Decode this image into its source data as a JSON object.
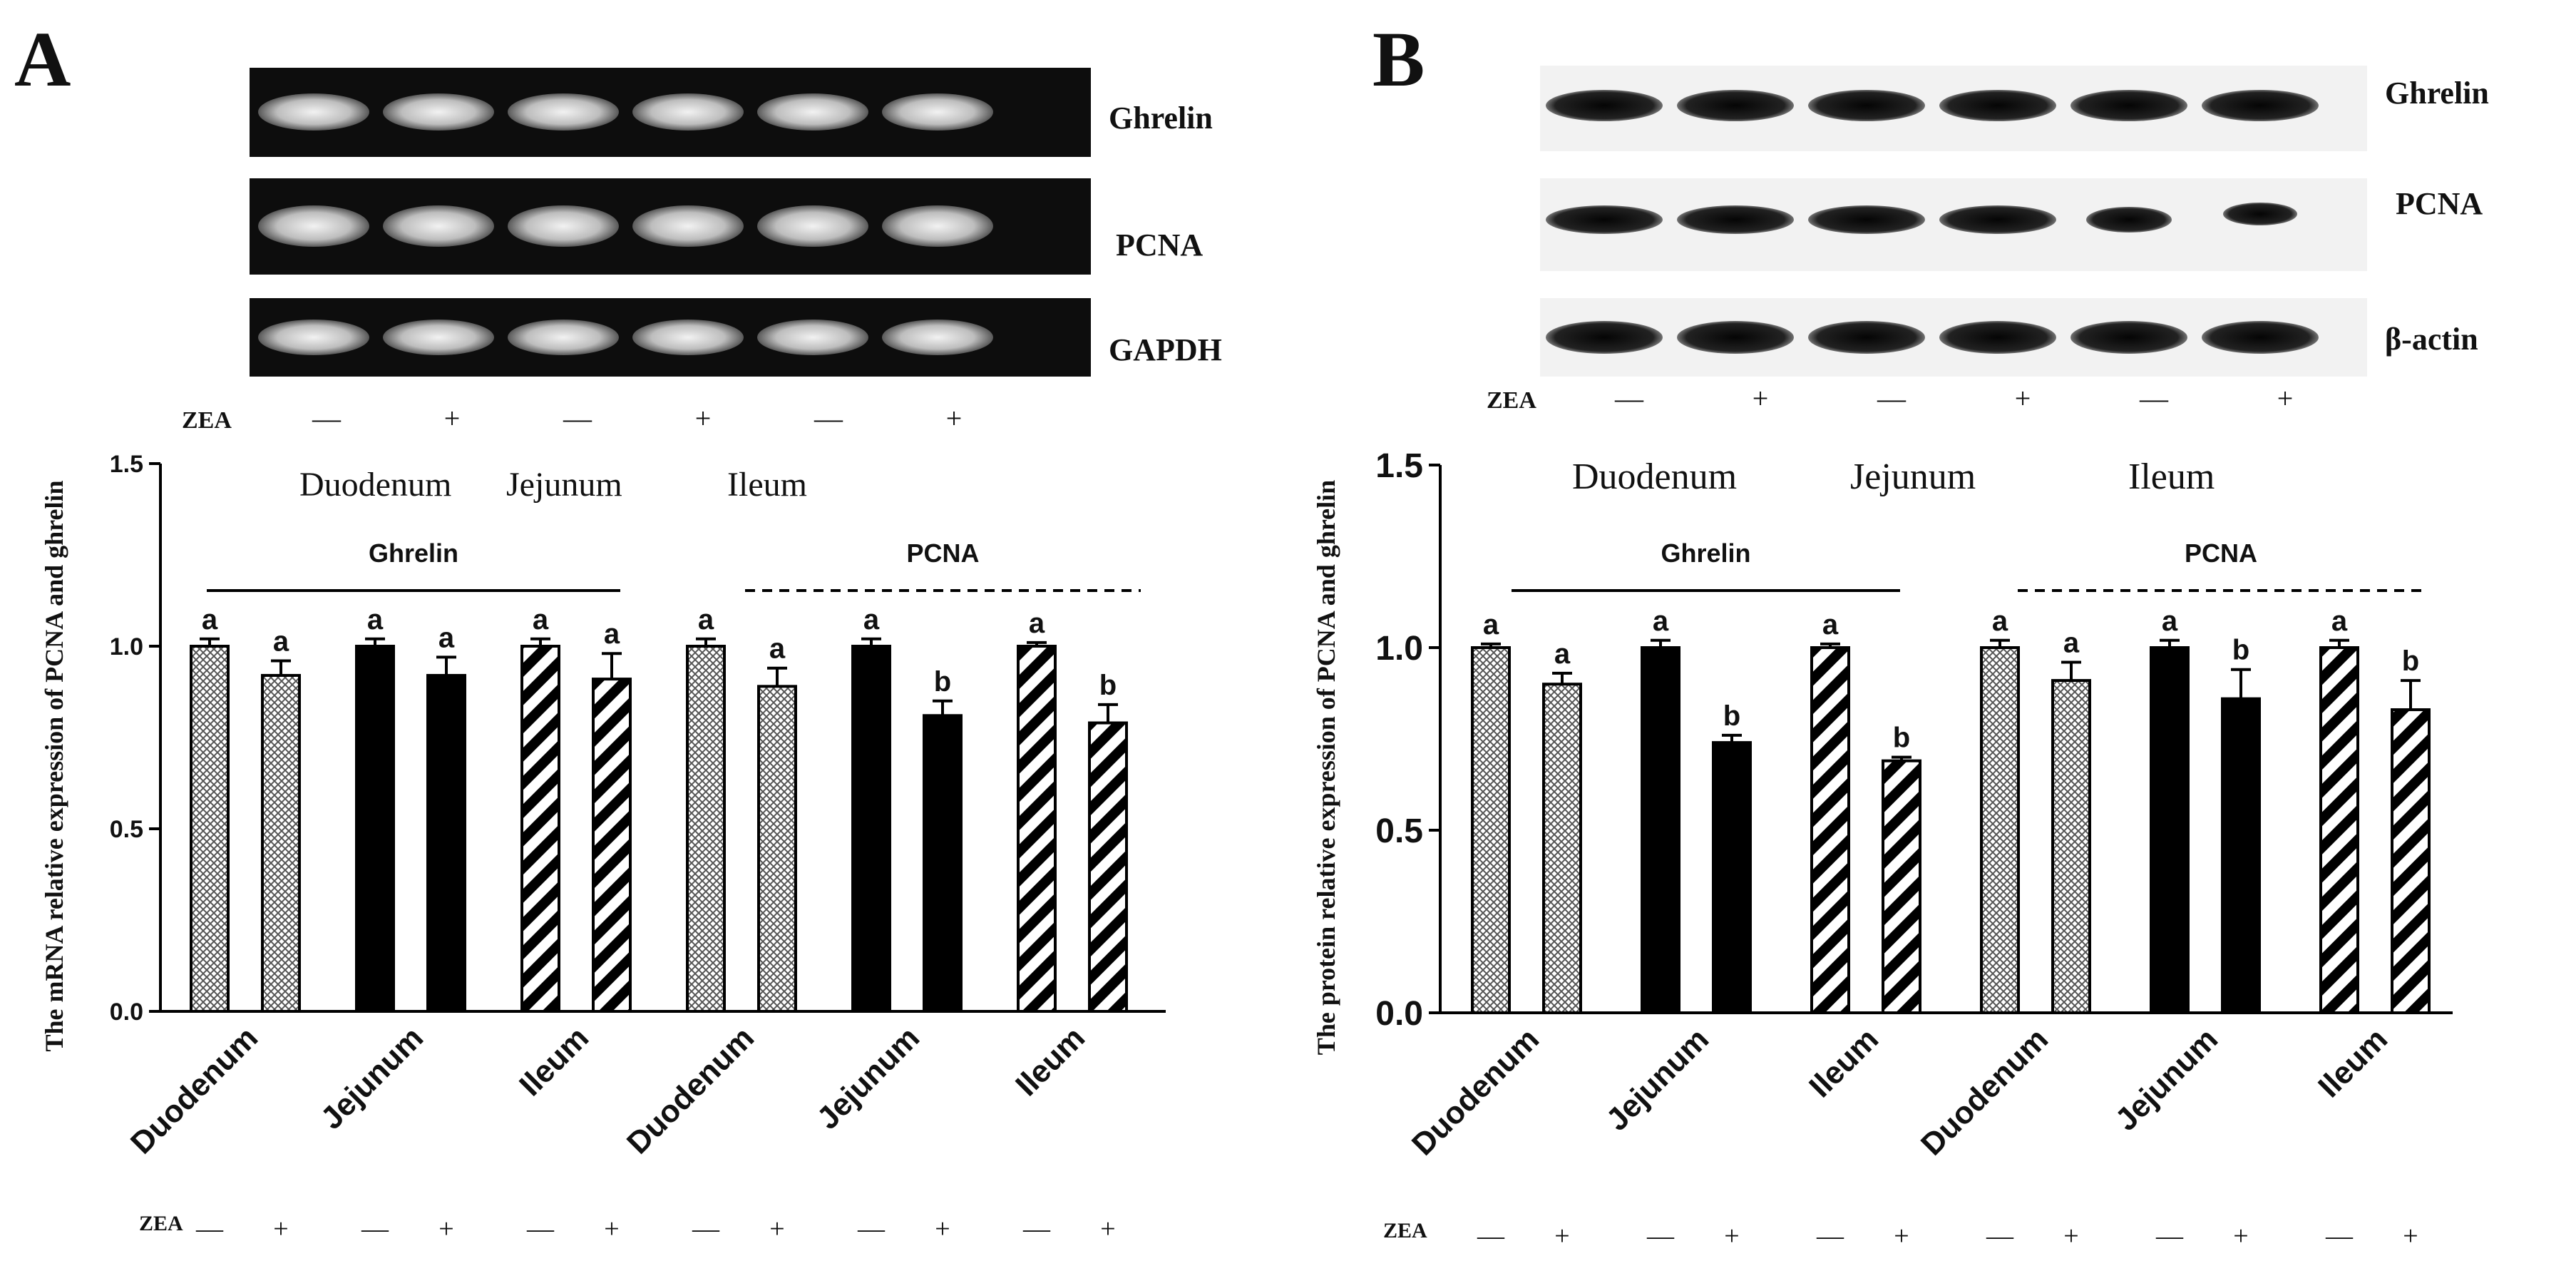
{
  "panels": [
    {
      "letter": "A",
      "blot_labels": [
        "Ghrelin",
        "PCNA",
        "GAPDH"
      ],
      "zea_row_label": "ZEA",
      "zea_signs": [
        "—",
        "+",
        "—",
        "+",
        "—",
        "+"
      ],
      "tissue_header": [
        "Duodenum",
        "Jejunum",
        "Ileum"
      ],
      "group_labels": [
        "Ghrelin",
        "PCNA"
      ],
      "chart_data": {
        "type": "bar",
        "ylabel": "The mRNA relative expression of PCNA and ghrelin",
        "ylim": [
          0,
          1.5
        ],
        "yticks": [
          "0.0",
          "0.5",
          "1.0",
          "1.5"
        ],
        "categories": [
          "Duodenum",
          "Jejunum",
          "Ileum",
          "Duodenum",
          "Jejunum",
          "Ileum"
        ],
        "series": [
          {
            "name": "—",
            "values": [
              1.0,
              1.0,
              1.0,
              1.0,
              1.0,
              1.0
            ],
            "errors": [
              0.02,
              0.02,
              0.02,
              0.02,
              0.02,
              0.01
            ]
          },
          {
            "name": "+",
            "values": [
              0.92,
              0.92,
              0.91,
              0.89,
              0.81,
              0.79
            ],
            "errors": [
              0.04,
              0.05,
              0.07,
              0.05,
              0.04,
              0.05
            ]
          }
        ],
        "significance": [
          [
            "a",
            "a"
          ],
          [
            "a",
            "a"
          ],
          [
            "a",
            "a"
          ],
          [
            "a",
            "a"
          ],
          [
            "a",
            "b"
          ],
          [
            "a",
            "b"
          ]
        ],
        "patterns": [
          "crosshatch",
          "solid-black",
          "diagonal-stripes",
          "crosshatch",
          "solid-black",
          "diagonal-stripes"
        ]
      }
    },
    {
      "letter": "B",
      "blot_labels": [
        "Ghrelin",
        "PCNA",
        "β-actin"
      ],
      "zea_row_label": "ZEA",
      "zea_signs": [
        "—",
        "+",
        "—",
        "+",
        "—",
        "+"
      ],
      "tissue_header": [
        "Duodenum",
        "Jejunum",
        "Ileum"
      ],
      "group_labels": [
        "Ghrelin",
        "PCNA"
      ],
      "chart_data": {
        "type": "bar",
        "ylabel": "The protein relative expression of PCNA and ghrelin",
        "ylim": [
          0,
          1.5
        ],
        "yticks": [
          "0.0",
          "0.5",
          "1.0",
          "1.5"
        ],
        "categories": [
          "Duodenum",
          "Jejunum",
          "Ileum",
          "Duodenum",
          "Jejunum",
          "Ileum"
        ],
        "series": [
          {
            "name": "—",
            "values": [
              1.0,
              1.0,
              1.0,
              1.0,
              1.0,
              1.0
            ],
            "errors": [
              0.01,
              0.02,
              0.01,
              0.02,
              0.02,
              0.02
            ]
          },
          {
            "name": "+",
            "values": [
              0.9,
              0.74,
              0.69,
              0.91,
              0.86,
              0.83
            ],
            "errors": [
              0.03,
              0.02,
              0.01,
              0.05,
              0.08,
              0.08
            ]
          }
        ],
        "significance": [
          [
            "a",
            "a"
          ],
          [
            "a",
            "b"
          ],
          [
            "a",
            "b"
          ],
          [
            "a",
            "a"
          ],
          [
            "a",
            "b"
          ],
          [
            "a",
            "b"
          ]
        ],
        "patterns": [
          "crosshatch",
          "solid-black",
          "diagonal-stripes",
          "crosshatch",
          "solid-black",
          "diagonal-stripes"
        ]
      }
    }
  ]
}
